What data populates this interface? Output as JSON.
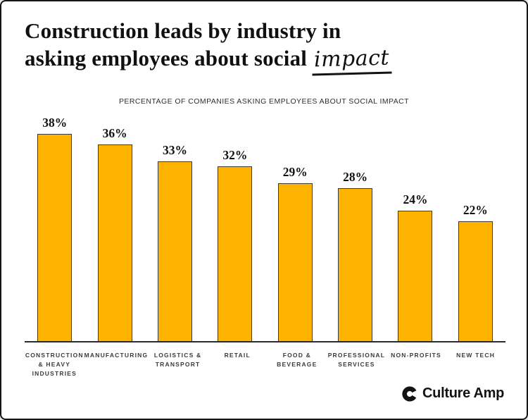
{
  "header": {
    "title_line1": "Construction leads by industry in",
    "title_line2_prefix": "asking employees about social",
    "title_line2_script": "impact"
  },
  "chart_data": {
    "type": "bar",
    "title": "PERCENTAGE OF COMPANIES ASKING EMPLOYEES ABOUT SOCIAL IMPACT",
    "categories": [
      "CONSTRUCTION & HEAVY INDUSTRIES",
      "MANUFACTURING",
      "LOGISTICS & TRANSPORT",
      "RETAIL",
      "FOOD & BEVERAGE",
      "PROFESSIONAL SERVICES",
      "NON-PROFITS",
      "NEW TECH"
    ],
    "category_lines": [
      [
        "CONSTRUCTION",
        "& HEAVY",
        "INDUSTRIES"
      ],
      [
        "MANUFACTURING"
      ],
      [
        "LOGISTICS &",
        "TRANSPORT"
      ],
      [
        "RETAIL"
      ],
      [
        "FOOD &",
        "BEVERAGE"
      ],
      [
        "PROFESSIONAL",
        "SERVICES"
      ],
      [
        "NON-PROFITS"
      ],
      [
        "NEW TECH"
      ]
    ],
    "values": [
      38,
      36,
      33,
      32,
      29,
      28,
      24,
      22
    ],
    "unit": "%",
    "value_labels": "above",
    "bar_color": "#FFB301",
    "bar_border_color": "#3A3A3A",
    "xlabel": "",
    "ylabel": "",
    "ylim": [
      0,
      40
    ],
    "grid": false,
    "legend": "none"
  },
  "footer": {
    "brand": "Culture Amp",
    "brand_icon": "culture-amp-c-icon",
    "brand_icon_colors": {
      "main": "#131313",
      "accent": "#8a8a8a"
    }
  }
}
